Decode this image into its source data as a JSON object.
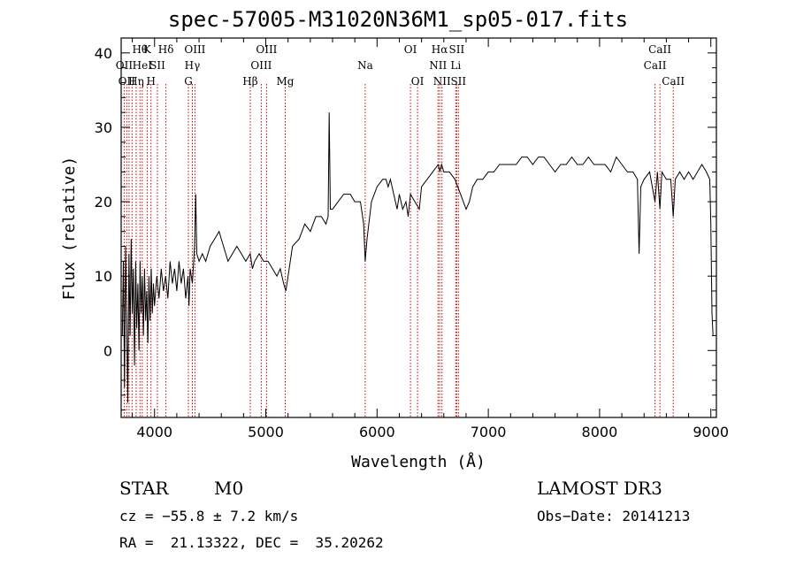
{
  "chart_data": {
    "type": "line",
    "title": "spec-57005-M31020N36M1_sp05-017.fits",
    "xlabel": "Wavelength (Å)",
    "ylabel": "Flux (relative)",
    "xlim": [
      3700,
      9050
    ],
    "ylim": [
      -9,
      42
    ],
    "xticks": [
      4000,
      5000,
      6000,
      7000,
      8000,
      9000
    ],
    "yticks": [
      0,
      10,
      20,
      30,
      40
    ],
    "grid": false,
    "line_color": "#000000",
    "marker_color": "#cc0000",
    "spectrum": [
      [
        3710,
        2
      ],
      [
        3720,
        12
      ],
      [
        3730,
        -5
      ],
      [
        3740,
        14
      ],
      [
        3750,
        4
      ],
      [
        3760,
        -7
      ],
      [
        3770,
        13
      ],
      [
        3780,
        2
      ],
      [
        3790,
        15
      ],
      [
        3800,
        5
      ],
      [
        3810,
        11
      ],
      [
        3820,
        -2
      ],
      [
        3830,
        12
      ],
      [
        3840,
        3
      ],
      [
        3850,
        9
      ],
      [
        3860,
        0
      ],
      [
        3870,
        12
      ],
      [
        3880,
        5
      ],
      [
        3890,
        10
      ],
      [
        3900,
        2
      ],
      [
        3910,
        11
      ],
      [
        3920,
        4
      ],
      [
        3930,
        8
      ],
      [
        3940,
        1
      ],
      [
        3950,
        10
      ],
      [
        3960,
        4
      ],
      [
        3970,
        11
      ],
      [
        3980,
        5
      ],
      [
        3990,
        9
      ],
      [
        4000,
        6
      ],
      [
        4020,
        10
      ],
      [
        4040,
        7
      ],
      [
        4060,
        11
      ],
      [
        4080,
        8
      ],
      [
        4100,
        10
      ],
      [
        4120,
        7
      ],
      [
        4140,
        12
      ],
      [
        4160,
        9
      ],
      [
        4180,
        11
      ],
      [
        4200,
        8
      ],
      [
        4220,
        12
      ],
      [
        4240,
        9
      ],
      [
        4260,
        11
      ],
      [
        4280,
        7
      ],
      [
        4300,
        10
      ],
      [
        4310,
        6
      ],
      [
        4320,
        11
      ],
      [
        4340,
        9
      ],
      [
        4360,
        14
      ],
      [
        4370,
        21
      ],
      [
        4380,
        13
      ],
      [
        4400,
        12
      ],
      [
        4430,
        13
      ],
      [
        4460,
        12
      ],
      [
        4500,
        14
      ],
      [
        4540,
        15
      ],
      [
        4580,
        16
      ],
      [
        4620,
        14
      ],
      [
        4660,
        12
      ],
      [
        4700,
        13
      ],
      [
        4740,
        14
      ],
      [
        4780,
        13
      ],
      [
        4820,
        12
      ],
      [
        4860,
        13
      ],
      [
        4880,
        11
      ],
      [
        4900,
        12
      ],
      [
        4940,
        13
      ],
      [
        4980,
        12
      ],
      [
        5020,
        12
      ],
      [
        5060,
        11
      ],
      [
        5100,
        10
      ],
      [
        5130,
        11
      ],
      [
        5160,
        9
      ],
      [
        5180,
        8
      ],
      [
        5200,
        10
      ],
      [
        5240,
        14
      ],
      [
        5300,
        15
      ],
      [
        5350,
        17
      ],
      [
        5400,
        16
      ],
      [
        5450,
        18
      ],
      [
        5500,
        18
      ],
      [
        5540,
        17
      ],
      [
        5560,
        18
      ],
      [
        5570,
        32
      ],
      [
        5580,
        19
      ],
      [
        5600,
        19
      ],
      [
        5650,
        20
      ],
      [
        5700,
        21
      ],
      [
        5760,
        21
      ],
      [
        5800,
        20
      ],
      [
        5850,
        20
      ],
      [
        5880,
        17
      ],
      [
        5893,
        12
      ],
      [
        5910,
        15
      ],
      [
        5950,
        20
      ],
      [
        6000,
        22
      ],
      [
        6050,
        23
      ],
      [
        6080,
        23
      ],
      [
        6100,
        22
      ],
      [
        6120,
        23
      ],
      [
        6150,
        21
      ],
      [
        6180,
        19
      ],
      [
        6200,
        21
      ],
      [
        6230,
        19
      ],
      [
        6260,
        20
      ],
      [
        6280,
        18
      ],
      [
        6300,
        21
      ],
      [
        6340,
        20
      ],
      [
        6380,
        19
      ],
      [
        6400,
        22
      ],
      [
        6450,
        23
      ],
      [
        6500,
        24
      ],
      [
        6550,
        25
      ],
      [
        6565,
        24
      ],
      [
        6580,
        25
      ],
      [
        6600,
        24
      ],
      [
        6650,
        24
      ],
      [
        6700,
        23
      ],
      [
        6750,
        21
      ],
      [
        6800,
        19
      ],
      [
        6830,
        20
      ],
      [
        6860,
        22
      ],
      [
        6900,
        23
      ],
      [
        6950,
        23
      ],
      [
        7000,
        24
      ],
      [
        7050,
        24
      ],
      [
        7100,
        25
      ],
      [
        7150,
        25
      ],
      [
        7200,
        25
      ],
      [
        7250,
        25
      ],
      [
        7300,
        26
      ],
      [
        7350,
        26
      ],
      [
        7400,
        25
      ],
      [
        7450,
        26
      ],
      [
        7500,
        26
      ],
      [
        7550,
        25
      ],
      [
        7600,
        24
      ],
      [
        7650,
        25
      ],
      [
        7700,
        25
      ],
      [
        7750,
        26
      ],
      [
        7800,
        25
      ],
      [
        7850,
        25
      ],
      [
        7900,
        26
      ],
      [
        7950,
        25
      ],
      [
        8000,
        25
      ],
      [
        8050,
        25
      ],
      [
        8100,
        24
      ],
      [
        8150,
        26
      ],
      [
        8200,
        25
      ],
      [
        8250,
        24
      ],
      [
        8300,
        24
      ],
      [
        8340,
        23
      ],
      [
        8355,
        13
      ],
      [
        8370,
        22
      ],
      [
        8400,
        23
      ],
      [
        8450,
        24
      ],
      [
        8498,
        20
      ],
      [
        8520,
        24
      ],
      [
        8542,
        19
      ],
      [
        8560,
        24
      ],
      [
        8600,
        23
      ],
      [
        8640,
        23
      ],
      [
        8662,
        18
      ],
      [
        8680,
        23
      ],
      [
        8720,
        24
      ],
      [
        8760,
        23
      ],
      [
        8800,
        24
      ],
      [
        8840,
        23
      ],
      [
        8880,
        24
      ],
      [
        8920,
        25
      ],
      [
        8960,
        24
      ],
      [
        8990,
        23
      ],
      [
        9000,
        17
      ],
      [
        9010,
        5
      ],
      [
        9020,
        2
      ]
    ],
    "line_markers": [
      {
        "wavelength": 3727,
        "label": "OII",
        "row": 2
      },
      {
        "wavelength": 3750,
        "label": "OII",
        "row": 3
      },
      {
        "wavelength": 3771,
        "label": "",
        "row": 1
      },
      {
        "wavelength": 3798,
        "label": "",
        "row": 1
      },
      {
        "wavelength": 3835,
        "label": "Hη",
        "row": 3
      },
      {
        "wavelength": 3869,
        "label": "Hθ",
        "row": 1
      },
      {
        "wavelength": 3889,
        "label": "HeI",
        "row": 2
      },
      {
        "wavelength": 3934,
        "label": "K",
        "row": 1
      },
      {
        "wavelength": 3968,
        "label": "H",
        "row": 3
      },
      {
        "wavelength": 4026,
        "label": "SII",
        "row": 2
      },
      {
        "wavelength": 4102,
        "label": "Hδ",
        "row": 1
      },
      {
        "wavelength": 4304,
        "label": "G",
        "row": 3
      },
      {
        "wavelength": 4340,
        "label": "Hγ",
        "row": 2
      },
      {
        "wavelength": 4363,
        "label": "OIII",
        "row": 1
      },
      {
        "wavelength": 4861,
        "label": "Hβ",
        "row": 3
      },
      {
        "wavelength": 4959,
        "label": "OIII",
        "row": 2
      },
      {
        "wavelength": 5007,
        "label": "OIII",
        "row": 1
      },
      {
        "wavelength": 5175,
        "label": "Mg",
        "row": 3
      },
      {
        "wavelength": 5893,
        "label": "Na",
        "row": 2
      },
      {
        "wavelength": 6300,
        "label": "OI",
        "row": 1
      },
      {
        "wavelength": 6364,
        "label": "OI",
        "row": 3
      },
      {
        "wavelength": 6548,
        "label": "NII",
        "row": 2
      },
      {
        "wavelength": 6563,
        "label": "Hα",
        "row": 1
      },
      {
        "wavelength": 6583,
        "label": "NII",
        "row": 3
      },
      {
        "wavelength": 6707,
        "label": "Li",
        "row": 2
      },
      {
        "wavelength": 6716,
        "label": "SII",
        "row": 1
      },
      {
        "wavelength": 6731,
        "label": "SII",
        "row": 3
      },
      {
        "wavelength": 8498,
        "label": "CaII",
        "row": 2
      },
      {
        "wavelength": 8542,
        "label": "CaII",
        "row": 1
      },
      {
        "wavelength": 8662,
        "label": "CaII",
        "row": 3
      }
    ]
  },
  "info": {
    "class": "STAR",
    "subclass": "M0",
    "survey": "LAMOST DR3",
    "redshift": "cz = −55.8 ± 7.2 km/s",
    "obs_date": "Obs−Date: 20141213",
    "coords": "RA =  21.13322, DEC =  35.20262"
  }
}
